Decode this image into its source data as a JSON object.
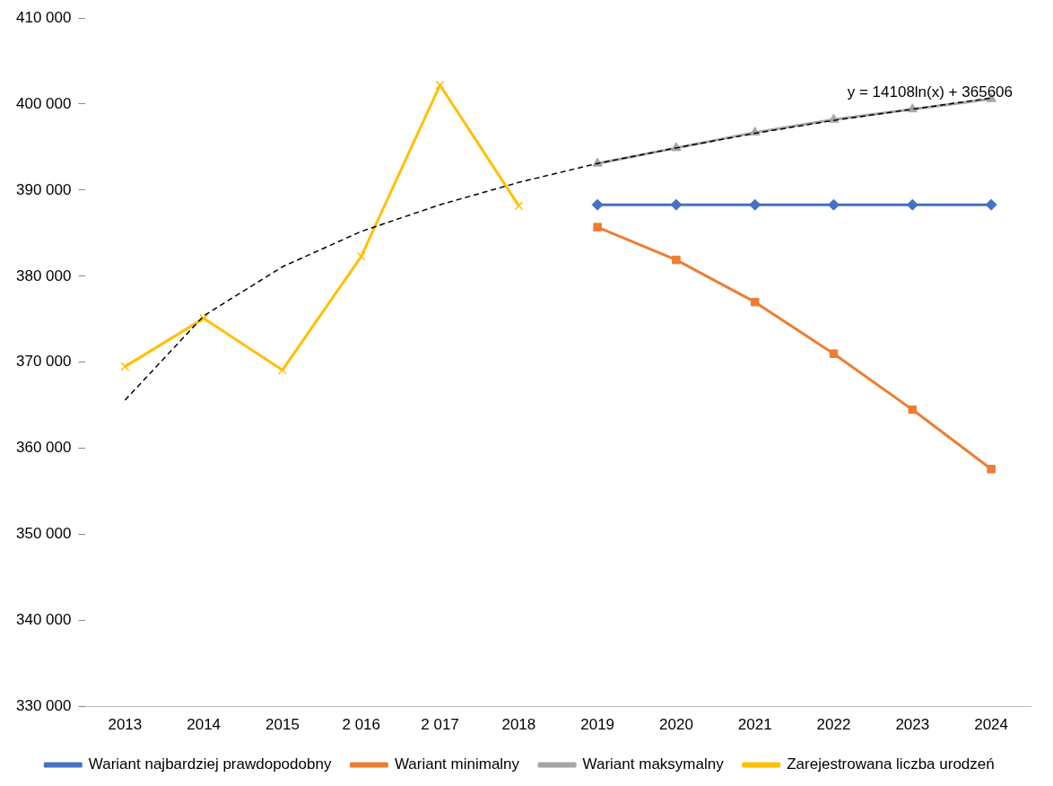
{
  "chart_data": {
    "type": "line",
    "categories": [
      "2013",
      "2014",
      "2015",
      "2 016",
      "2 017",
      "2018",
      "2019",
      "2020",
      "2021",
      "2022",
      "2023",
      "2024"
    ],
    "ylim": [
      330000,
      410000
    ],
    "yticks": [
      {
        "value": 330000,
        "label": "330 000"
      },
      {
        "value": 340000,
        "label": "340 000"
      },
      {
        "value": 350000,
        "label": "350 000"
      },
      {
        "value": 360000,
        "label": "360 000"
      },
      {
        "value": 370000,
        "label": "370 000"
      },
      {
        "value": 380000,
        "label": "380 000"
      },
      {
        "value": 390000,
        "label": "390 000"
      },
      {
        "value": 400000,
        "label": "400 000"
      },
      {
        "value": 410000,
        "label": "410 000"
      }
    ],
    "grid": false,
    "legend": "bottom",
    "line_style": "solid",
    "series": [
      {
        "name": "Wariant najbardziej prawdopodobny",
        "color": "#4472c4",
        "marker": "diamond",
        "values": [
          null,
          null,
          null,
          null,
          null,
          null,
          388300,
          388300,
          388300,
          388300,
          388300,
          388300
        ]
      },
      {
        "name": "Wariant minimalny",
        "color": "#ed7d31",
        "marker": "square",
        "values": [
          null,
          null,
          null,
          null,
          null,
          null,
          385700,
          381900,
          377000,
          371000,
          364500,
          357600
        ]
      },
      {
        "name": "Wariant maksymalny",
        "color": "#a5a5a5",
        "marker": "triangle",
        "values": [
          null,
          null,
          null,
          null,
          null,
          null,
          393100,
          394900,
          396700,
          398200,
          399400,
          400600
        ]
      },
      {
        "name": "Zarejestrowana liczba urodzeń",
        "color": "#ffc000",
        "marker": "cross",
        "values": [
          369500,
          375100,
          369100,
          382300,
          402200,
          388200,
          null,
          null,
          null,
          null,
          null,
          null
        ]
      },
      {
        "type": "line",
        "color": "#000000",
        "marker": "none",
        "line_style": "dashed",
        "values": [
          365600,
          375400,
          381100,
          385200,
          388300,
          390900,
          393100,
          394900,
          396600,
          398100,
          399400,
          400700
        ]
      }
    ],
    "annotations": [
      "y = 14108ln(x) + 365606"
    ]
  }
}
